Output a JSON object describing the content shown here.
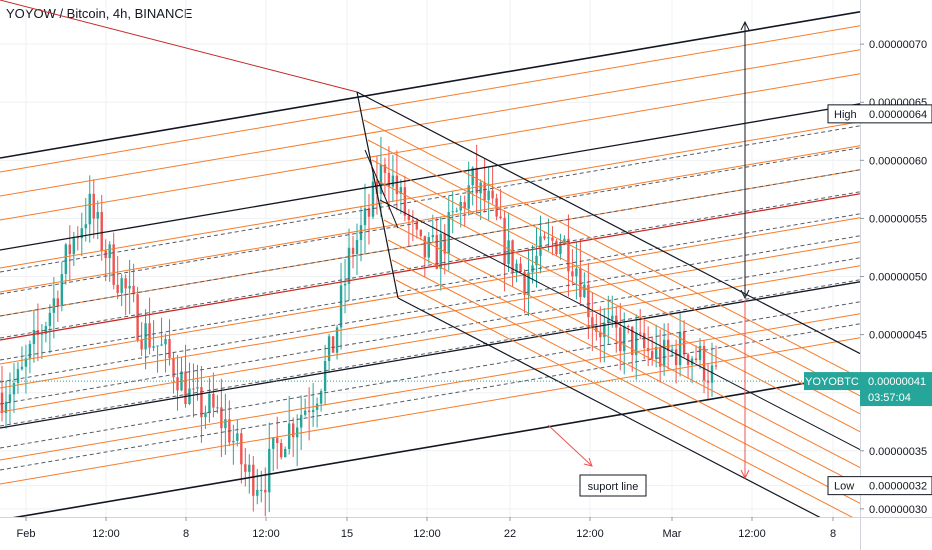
{
  "header": {
    "title": "YOYOW / Bitcoin, 4h, BINANCE"
  },
  "colors": {
    "up": "#26a69a",
    "down": "#ef5350",
    "orange_lines": "#f57c2c",
    "red_lines": "#c62828",
    "black_lines": "#131722",
    "last_price_line": "#26a69a",
    "last_price_badge": "#26a69a"
  },
  "chart_data": {
    "type": "candlestick",
    "symbol": "YOYOBTC",
    "title": "YOYOW / Bitcoin, 4h, BINANCE",
    "x_tick_labels": [
      "Feb",
      "12:00",
      "8",
      "12:00",
      "15",
      "12:00",
      "22",
      "12:00",
      "Mar",
      "12:00",
      "8"
    ],
    "y_ticks": [
      3e-07,
      3.2e-07,
      3.5e-07,
      4e-07,
      4.5e-07,
      5e-07,
      5.5e-07,
      6e-07,
      6.5e-07,
      7e-07
    ],
    "y_tick_labels": [
      "0.00000030",
      "0.00000032",
      "0.00000035",
      "0.00000040",
      "0.00000045",
      "0.00000050",
      "0.00000055",
      "0.00000060",
      "0.00000065",
      "0.00000070"
    ],
    "ylim": [
      2.93e-07,
      7.38e-07
    ],
    "last_price": {
      "label": "YOYOBTC",
      "value": "0.00000041",
      "timer": "03:57:04",
      "price": 4.1e-07
    },
    "high_marker": {
      "label": "High",
      "value": "0.00000064",
      "price": 6.4e-07
    },
    "low_marker": {
      "label": "Low",
      "value": "0.00000032",
      "price": 3.2e-07
    },
    "annotation": {
      "text": "suport line"
    },
    "grid": true,
    "close_path": [
      [
        0,
        0.4
      ],
      [
        2,
        0.41
      ],
      [
        4,
        0.445
      ],
      [
        6,
        0.48
      ],
      [
        8,
        0.53
      ],
      [
        10,
        0.56
      ],
      [
        12,
        0.52
      ],
      [
        14,
        0.49
      ],
      [
        16,
        0.455
      ],
      [
        18,
        0.44
      ],
      [
        20,
        0.42
      ],
      [
        22,
        0.39
      ],
      [
        24,
        0.385
      ],
      [
        26,
        0.37
      ],
      [
        28,
        0.33
      ],
      [
        30,
        0.325
      ],
      [
        32,
        0.36
      ],
      [
        34,
        0.38
      ],
      [
        36,
        0.4
      ],
      [
        38,
        0.44
      ],
      [
        40,
        0.52
      ],
      [
        42,
        0.55
      ],
      [
        44,
        0.6
      ],
      [
        46,
        0.56
      ],
      [
        48,
        0.52
      ],
      [
        50,
        0.52
      ],
      [
        52,
        0.55
      ],
      [
        54,
        0.58
      ],
      [
        56,
        0.56
      ],
      [
        58,
        0.52
      ],
      [
        60,
        0.5
      ],
      [
        62,
        0.52
      ],
      [
        64,
        0.535
      ],
      [
        66,
        0.51
      ],
      [
        68,
        0.46
      ],
      [
        70,
        0.45
      ],
      [
        72,
        0.445
      ],
      [
        74,
        0.435
      ],
      [
        76,
        0.43
      ],
      [
        78,
        0.44
      ],
      [
        80,
        0.43
      ],
      [
        82,
        0.41
      ]
    ]
  }
}
